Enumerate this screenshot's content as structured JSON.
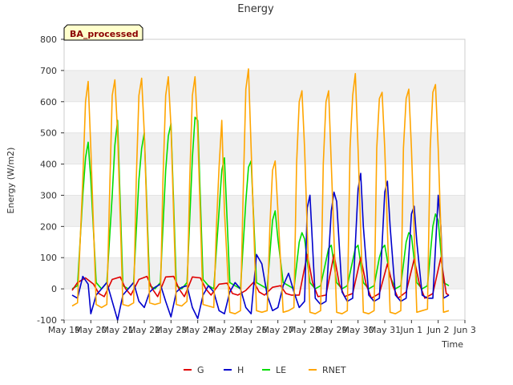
{
  "chart_data": {
    "type": "line",
    "title": "Energy",
    "xlabel": "Time",
    "ylabel": "Energy (W/m2)",
    "badge": "BA_processed",
    "ylim": [
      -100,
      800
    ],
    "xlim": [
      0,
      15
    ],
    "yticks": [
      -100,
      0,
      100,
      200,
      300,
      400,
      500,
      600,
      700,
      800
    ],
    "xticks": [
      {
        "x": 0,
        "label": "May 19"
      },
      {
        "x": 1,
        "label": "May 20"
      },
      {
        "x": 2,
        "label": "May 21"
      },
      {
        "x": 3,
        "label": "May 22"
      },
      {
        "x": 4,
        "label": "May 23"
      },
      {
        "x": 5,
        "label": "May 24"
      },
      {
        "x": 6,
        "label": "May 25"
      },
      {
        "x": 7,
        "label": "May 26"
      },
      {
        "x": 8,
        "label": "May 27"
      },
      {
        "x": 9,
        "label": "May 28"
      },
      {
        "x": 10,
        "label": "May 29"
      },
      {
        "x": 11,
        "label": "May 30"
      },
      {
        "x": 12,
        "label": "May 31"
      },
      {
        "x": 13,
        "label": "Jun 1"
      },
      {
        "x": 14,
        "label": "Jun 2"
      },
      {
        "x": 15,
        "label": "Jun 3"
      }
    ],
    "grid": "horizontal bands",
    "legend_position": "bottom",
    "series": [
      {
        "name": "G",
        "color": "#e00000",
        "x": [
          0.3,
          0.5,
          0.8,
          1.1,
          1.3,
          1.5,
          1.8,
          2.1,
          2.3,
          2.5,
          2.8,
          3.1,
          3.3,
          3.5,
          3.8,
          4.1,
          4.3,
          4.5,
          4.8,
          5.1,
          5.3,
          5.5,
          5.8,
          6.1,
          6.3,
          6.5,
          6.8,
          7.1,
          7.3,
          7.5,
          7.8,
          8.1,
          8.3,
          8.5,
          8.8,
          9.1,
          9.3,
          9.5,
          9.8,
          10.1,
          10.3,
          10.5,
          10.8,
          11.1,
          11.3,
          11.5,
          11.8,
          12.1,
          12.3,
          12.5,
          12.8,
          13.1,
          13.3,
          13.5,
          13.8,
          14.1,
          14.3,
          14.4
        ],
        "y": [
          -5,
          20,
          35,
          15,
          -15,
          -25,
          30,
          38,
          0,
          -20,
          30,
          40,
          0,
          -25,
          38,
          40,
          0,
          -25,
          38,
          35,
          0,
          -20,
          15,
          18,
          -15,
          -20,
          -5,
          22,
          -10,
          -20,
          5,
          10,
          -15,
          -20,
          -20,
          110,
          20,
          -25,
          -20,
          110,
          15,
          -25,
          -15,
          100,
          15,
          -30,
          -15,
          80,
          10,
          -30,
          -10,
          95,
          15,
          -30,
          -15,
          100,
          -15,
          -20
        ]
      },
      {
        "name": "H",
        "color": "#0000cc",
        "x": [
          0.3,
          0.5,
          0.7,
          0.9,
          1.0,
          1.2,
          1.4,
          1.6,
          1.8,
          2.0,
          2.2,
          2.4,
          2.6,
          2.8,
          3.0,
          3.2,
          3.4,
          3.6,
          3.8,
          4.0,
          4.2,
          4.4,
          4.6,
          4.8,
          5.0,
          5.2,
          5.4,
          5.6,
          5.8,
          6.0,
          6.2,
          6.4,
          6.6,
          6.8,
          7.0,
          7.2,
          7.4,
          7.6,
          7.8,
          8.0,
          8.2,
          8.4,
          8.6,
          8.8,
          9.0,
          9.1,
          9.2,
          9.4,
          9.6,
          9.8,
          10.0,
          10.1,
          10.2,
          10.4,
          10.6,
          10.8,
          11.0,
          11.1,
          11.2,
          11.4,
          11.6,
          11.8,
          12.0,
          12.1,
          12.2,
          12.4,
          12.6,
          12.8,
          13.0,
          13.1,
          13.2,
          13.4,
          13.6,
          13.8,
          14.0,
          14.1,
          14.2,
          14.4
        ],
        "y": [
          -20,
          -30,
          40,
          15,
          -80,
          -20,
          0,
          20,
          -40,
          -100,
          -20,
          0,
          20,
          -40,
          -60,
          -10,
          5,
          15,
          -40,
          -90,
          -10,
          5,
          10,
          -60,
          -95,
          -20,
          10,
          -10,
          -70,
          -80,
          -10,
          20,
          0,
          -60,
          -80,
          110,
          80,
          -20,
          -70,
          -60,
          10,
          50,
          -10,
          -60,
          -40,
          260,
          300,
          -30,
          -50,
          -40,
          250,
          310,
          280,
          -10,
          -40,
          -30,
          320,
          370,
          200,
          -20,
          -40,
          -30,
          310,
          345,
          200,
          -20,
          -40,
          -30,
          240,
          265,
          150,
          -20,
          -30,
          -30,
          300,
          200,
          -30,
          -20
        ]
      },
      {
        "name": "LE",
        "color": "#00dd00",
        "x": [
          0.3,
          0.5,
          0.7,
          0.8,
          0.9,
          1.0,
          1.2,
          1.4,
          1.6,
          1.8,
          1.9,
          2.0,
          2.2,
          2.4,
          2.6,
          2.8,
          2.9,
          3.0,
          3.2,
          3.4,
          3.6,
          3.8,
          3.9,
          4.0,
          4.2,
          4.4,
          4.6,
          4.8,
          4.9,
          5.0,
          5.2,
          5.4,
          5.6,
          5.8,
          5.9,
          6.0,
          6.2,
          6.4,
          6.6,
          6.8,
          6.9,
          7.0,
          7.2,
          7.4,
          7.6,
          7.8,
          7.9,
          8.0,
          8.2,
          8.4,
          8.6,
          8.8,
          8.9,
          9.0,
          9.2,
          9.4,
          9.6,
          9.8,
          9.9,
          10.0,
          10.2,
          10.4,
          10.6,
          10.8,
          10.9,
          11.0,
          11.2,
          11.4,
          11.6,
          11.8,
          11.9,
          12.0,
          12.2,
          12.4,
          12.6,
          12.8,
          12.9,
          13.0,
          13.2,
          13.4,
          13.6,
          13.8,
          13.9,
          14.0,
          14.2,
          14.4
        ],
        "y": [
          0,
          10,
          300,
          420,
          470,
          350,
          20,
          0,
          20,
          300,
          460,
          540,
          10,
          0,
          20,
          350,
          450,
          500,
          10,
          0,
          20,
          380,
          490,
          530,
          10,
          0,
          20,
          420,
          550,
          540,
          30,
          10,
          0,
          250,
          380,
          420,
          20,
          10,
          0,
          280,
          390,
          410,
          20,
          10,
          0,
          220,
          250,
          160,
          20,
          10,
          0,
          150,
          180,
          160,
          20,
          0,
          10,
          90,
          130,
          140,
          20,
          0,
          10,
          90,
          130,
          140,
          20,
          0,
          10,
          100,
          130,
          140,
          40,
          0,
          10,
          150,
          180,
          170,
          20,
          0,
          10,
          200,
          240,
          220,
          20,
          10
        ]
      },
      {
        "name": "RNET",
        "color": "#ffa500",
        "x": [
          0.3,
          0.5,
          0.7,
          0.8,
          0.9,
          1.0,
          1.2,
          1.4,
          1.6,
          1.7,
          1.8,
          1.9,
          2.0,
          2.2,
          2.4,
          2.6,
          2.7,
          2.8,
          2.9,
          3.0,
          3.2,
          3.4,
          3.6,
          3.7,
          3.8,
          3.9,
          4.0,
          4.2,
          4.4,
          4.6,
          4.7,
          4.8,
          4.9,
          5.0,
          5.2,
          5.4,
          5.6,
          5.7,
          5.8,
          5.9,
          6.0,
          6.2,
          6.4,
          6.6,
          6.7,
          6.8,
          6.9,
          7.0,
          7.2,
          7.4,
          7.6,
          7.7,
          7.8,
          7.9,
          8.0,
          8.2,
          8.4,
          8.6,
          8.7,
          8.8,
          8.9,
          9.0,
          9.2,
          9.4,
          9.6,
          9.7,
          9.8,
          9.9,
          10.0,
          10.2,
          10.4,
          10.6,
          10.7,
          10.8,
          10.9,
          11.0,
          11.2,
          11.4,
          11.6,
          11.7,
          11.8,
          11.9,
          12.0,
          12.2,
          12.4,
          12.6,
          12.7,
          12.8,
          12.9,
          13.0,
          13.2,
          13.4,
          13.6,
          13.7,
          13.8,
          13.9,
          14.0,
          14.2,
          14.4
        ],
        "y": [
          -55,
          -45,
          350,
          600,
          665,
          450,
          -50,
          -60,
          -50,
          300,
          620,
          670,
          500,
          -50,
          -55,
          -45,
          350,
          620,
          675,
          500,
          -45,
          -50,
          -45,
          350,
          620,
          680,
          520,
          -50,
          -55,
          -40,
          350,
          620,
          680,
          500,
          -50,
          -55,
          -60,
          200,
          390,
          540,
          250,
          -75,
          -80,
          -70,
          300,
          640,
          705,
          450,
          -70,
          -75,
          -70,
          200,
          380,
          410,
          250,
          -75,
          -70,
          -60,
          400,
          600,
          635,
          450,
          -75,
          -80,
          -70,
          400,
          600,
          635,
          400,
          -75,
          -80,
          -70,
          450,
          620,
          690,
          450,
          -75,
          -80,
          -70,
          450,
          610,
          630,
          450,
          -75,
          -80,
          -70,
          450,
          610,
          640,
          450,
          -75,
          -70,
          -65,
          450,
          630,
          655,
          450,
          -75,
          -70
        ]
      }
    ]
  }
}
